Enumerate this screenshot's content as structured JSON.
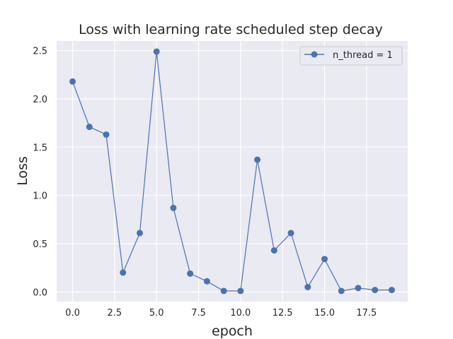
{
  "chart_data": {
    "type": "line",
    "title": "Loss with learning rate scheduled step decay",
    "xlabel": "epoch",
    "ylabel": "Loss",
    "xlim": [
      -0.95,
      19.95
    ],
    "ylim": [
      -0.1,
      2.6
    ],
    "xticks": [
      0,
      2.5,
      5,
      7.5,
      10,
      12.5,
      15,
      17.5
    ],
    "xtick_labels": [
      "0.0",
      "2.5",
      "5.0",
      "7.5",
      "10.0",
      "12.5",
      "15.0",
      "17.5"
    ],
    "yticks": [
      0,
      0.5,
      1.0,
      1.5,
      2.0,
      2.5
    ],
    "ytick_labels": [
      "0.0",
      "0.5",
      "1.0",
      "1.5",
      "2.0",
      "2.5"
    ],
    "grid": true,
    "legend_position": "top-right",
    "colors": {
      "background": "#eaeaf2",
      "grid": "#ffffff",
      "series": "#4c72b0"
    },
    "series": [
      {
        "name": "n_thread = 1",
        "x": [
          0,
          1,
          2,
          3,
          4,
          5,
          6,
          7,
          8,
          9,
          10,
          11,
          12,
          13,
          14,
          15,
          16,
          17,
          18,
          19
        ],
        "values": [
          2.18,
          1.71,
          1.63,
          0.2,
          0.61,
          2.49,
          0.87,
          0.19,
          0.11,
          0.01,
          0.01,
          1.37,
          0.43,
          0.61,
          0.05,
          0.34,
          0.01,
          0.04,
          0.02,
          0.02
        ]
      }
    ]
  }
}
